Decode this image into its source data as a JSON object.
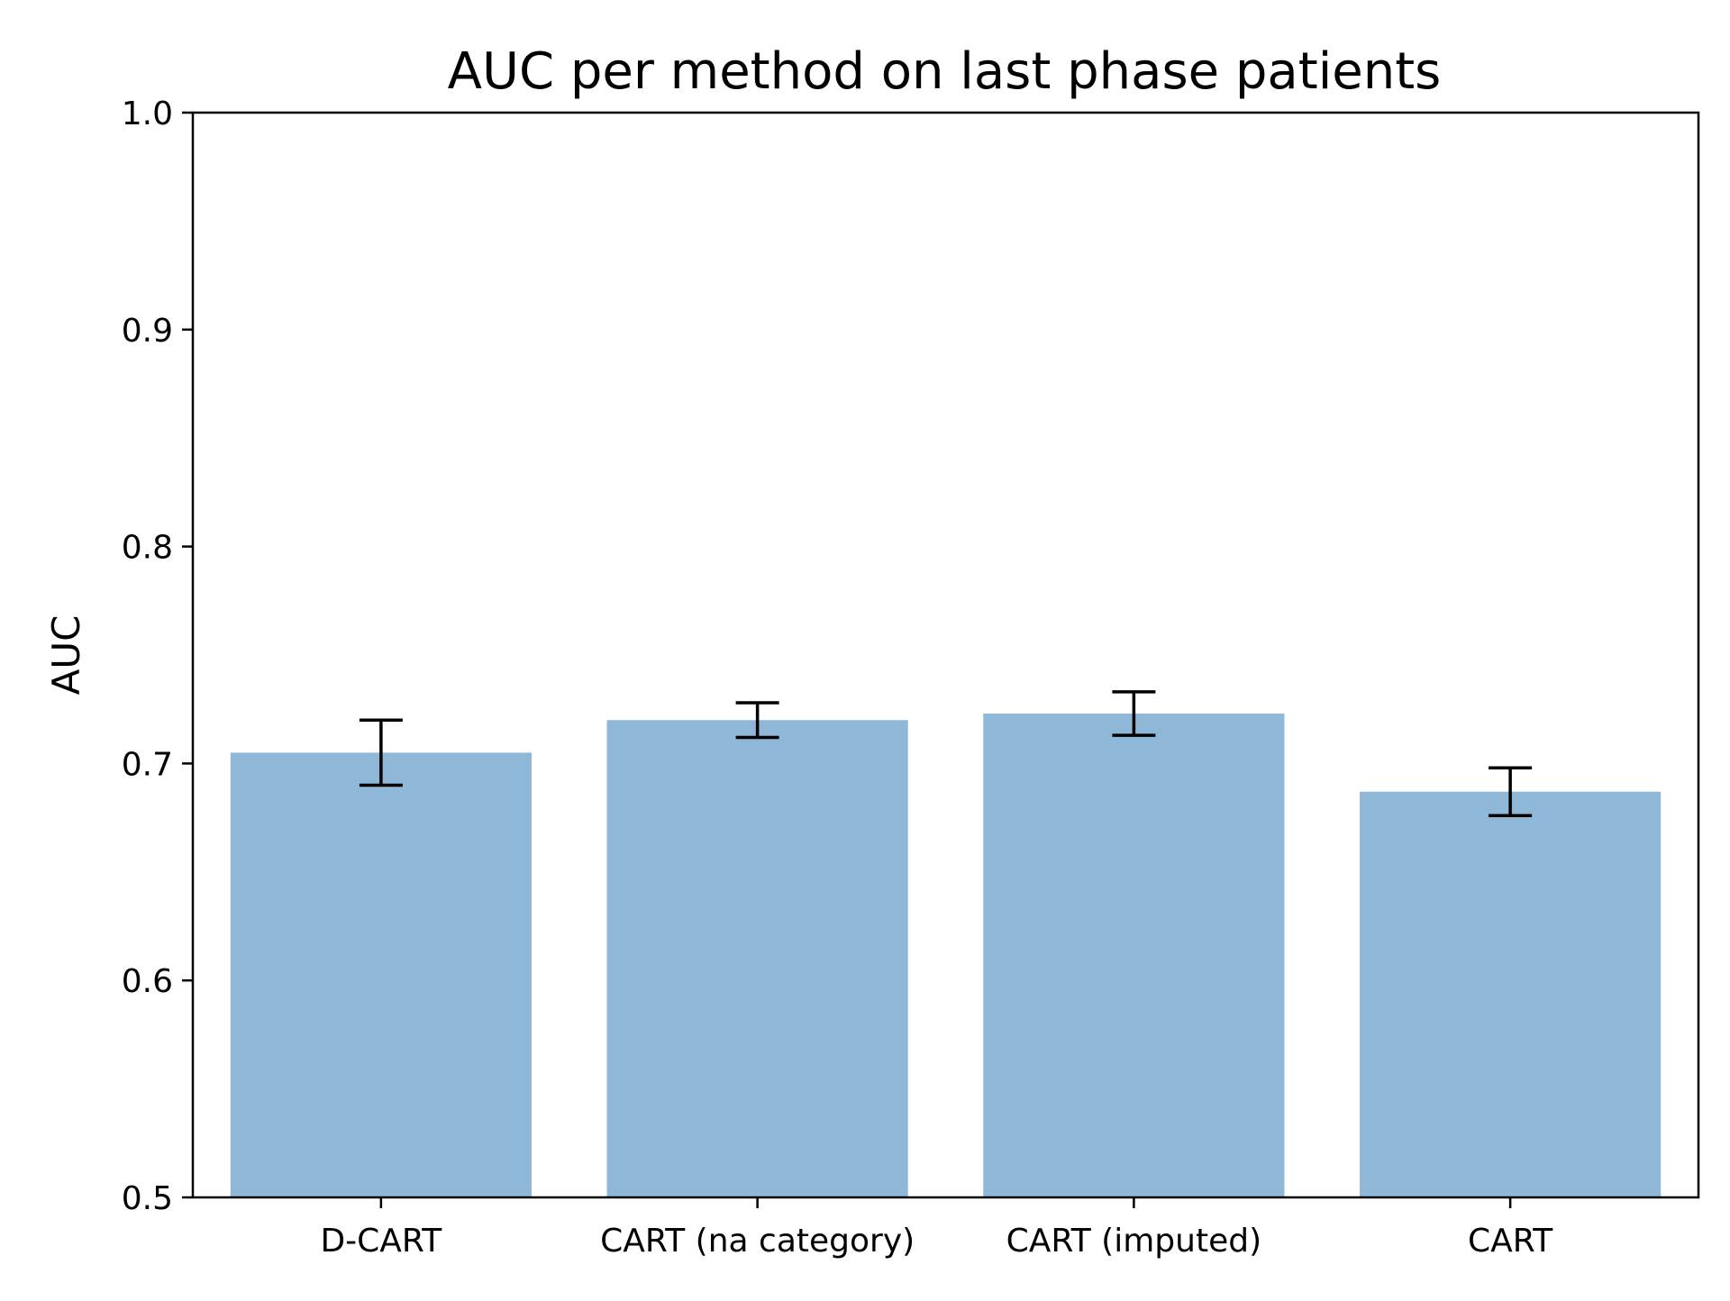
{
  "chart_data": {
    "type": "bar",
    "title": "AUC per method on last phase patients",
    "xlabel": "",
    "ylabel": "AUC",
    "categories": [
      "D-CART",
      "CART (na category)",
      "CART (imputed)",
      "CART"
    ],
    "values": [
      0.705,
      0.72,
      0.723,
      0.687
    ],
    "error": [
      0.015,
      0.008,
      0.01,
      0.011
    ],
    "ylim": [
      0.5,
      1.0
    ],
    "yticks": [
      0.5,
      0.6,
      0.7,
      0.8,
      0.9,
      1.0
    ],
    "ytick_labels": [
      "0.5",
      "0.6",
      "0.7",
      "0.8",
      "0.9",
      "1.0"
    ],
    "grid": false,
    "bar_color": "#8fb8d8",
    "error_color": "#000000"
  }
}
